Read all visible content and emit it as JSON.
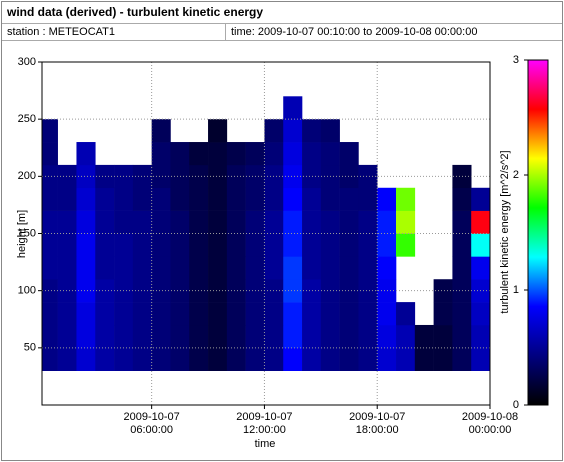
{
  "chart_data": {
    "type": "heatmap",
    "title": "wind data (derived) - turbulent kinetic energy",
    "station": "station : METEOCAT1",
    "time_range": "time: 2009-10-07 00:10:00 to 2009-10-08 00:00:00",
    "xlabel": "time",
    "ylabel": "height [m]",
    "colorbar_label": "turbulent kinetic energy [m^2/s^2]",
    "xlim": [
      0.1667,
      24
    ],
    "xticks": [
      {
        "value": 6,
        "label": "2009-10-07 06:00:00"
      },
      {
        "value": 12,
        "label": "2009-10-07 12:00:00"
      },
      {
        "value": 18,
        "label": "2009-10-07 18:00:00"
      },
      {
        "value": 24,
        "label": "2009-10-08 00:00:00"
      }
    ],
    "ylim": [
      0,
      300
    ],
    "yticks": [
      50,
      100,
      150,
      200,
      250,
      300
    ],
    "clim": [
      0,
      3
    ],
    "cticks": [
      0,
      1,
      2,
      3
    ],
    "colormap": [
      "#000000",
      "#000080",
      "#0000ff",
      "#00ffff",
      "#00ff00",
      "#ffff00",
      "#ff0000",
      "#ff00ff"
    ],
    "grid": true,
    "xbins": [
      0.1667,
      1,
      2,
      3,
      4,
      5,
      6,
      7,
      8,
      9,
      10,
      11,
      12,
      13,
      14,
      15,
      16,
      17,
      18,
      19,
      20,
      21,
      22,
      23,
      24
    ],
    "ybins": [
      30,
      50,
      70,
      90,
      110,
      130,
      150,
      170,
      190,
      210,
      230,
      250,
      270
    ],
    "z": [
      [
        0.45,
        0.5,
        0.7,
        0.55,
        0.5,
        0.45,
        0.4,
        0.35,
        0.25,
        0.2,
        0.3,
        0.4,
        0.45,
        0.85,
        0.55,
        0.45,
        0.4,
        0.45,
        0.7,
        0.6,
        0.2,
        0.2,
        0.3,
        0.6
      ],
      [
        0.45,
        0.5,
        0.75,
        0.55,
        0.5,
        0.45,
        0.4,
        0.35,
        0.25,
        0.2,
        0.3,
        0.4,
        0.45,
        0.9,
        0.55,
        0.45,
        0.4,
        0.45,
        0.75,
        0.6,
        0.2,
        0.2,
        0.3,
        0.6
      ],
      [
        0.45,
        0.5,
        0.75,
        0.55,
        0.5,
        0.45,
        0.4,
        0.35,
        0.25,
        0.2,
        0.3,
        0.4,
        0.45,
        0.9,
        0.55,
        0.45,
        0.4,
        0.45,
        0.8,
        0.5,
        null,
        0.25,
        0.3,
        0.65
      ],
      [
        0.45,
        0.5,
        0.8,
        0.55,
        0.5,
        0.45,
        0.4,
        0.35,
        0.25,
        0.2,
        0.3,
        0.4,
        0.45,
        0.95,
        0.55,
        0.45,
        0.4,
        0.45,
        0.8,
        null,
        null,
        0.25,
        0.3,
        0.7
      ],
      [
        0.5,
        0.5,
        0.8,
        0.5,
        0.5,
        0.45,
        0.4,
        0.35,
        0.25,
        0.2,
        0.3,
        0.4,
        0.5,
        0.95,
        0.5,
        0.45,
        0.4,
        0.45,
        0.85,
        null,
        null,
        null,
        0.3,
        0.8
      ],
      [
        0.5,
        0.5,
        0.8,
        0.5,
        0.5,
        0.45,
        0.4,
        0.35,
        0.25,
        0.2,
        0.3,
        0.4,
        0.5,
        0.9,
        0.5,
        0.45,
        0.4,
        0.45,
        0.9,
        1.8,
        null,
        null,
        0.3,
        1.3
      ],
      [
        0.5,
        0.5,
        0.75,
        0.5,
        0.45,
        0.45,
        0.4,
        0.35,
        0.25,
        0.2,
        0.3,
        0.4,
        0.5,
        0.9,
        0.5,
        0.45,
        0.4,
        0.45,
        0.9,
        2.0,
        null,
        null,
        0.3,
        2.6
      ],
      [
        0.45,
        0.45,
        0.7,
        0.5,
        0.45,
        0.4,
        0.4,
        0.3,
        0.25,
        0.2,
        0.3,
        0.35,
        0.45,
        0.85,
        0.5,
        0.4,
        0.4,
        0.4,
        0.85,
        1.9,
        null,
        null,
        0.25,
        0.5
      ],
      [
        0.45,
        0.45,
        0.65,
        0.45,
        0.45,
        0.4,
        0.35,
        0.3,
        0.25,
        0.2,
        0.3,
        0.35,
        0.45,
        0.8,
        0.45,
        0.4,
        0.35,
        0.4,
        null,
        null,
        null,
        null,
        0.2,
        null
      ],
      [
        0.4,
        null,
        0.6,
        null,
        null,
        null,
        0.35,
        0.3,
        0.2,
        0.2,
        0.25,
        0.3,
        0.4,
        0.75,
        0.45,
        0.4,
        0.35,
        null,
        null,
        null,
        null,
        null,
        null,
        null
      ],
      [
        0.4,
        null,
        null,
        null,
        null,
        null,
        0.3,
        null,
        null,
        0.15,
        null,
        null,
        0.35,
        0.7,
        0.4,
        0.35,
        null,
        null,
        null,
        null,
        null,
        null,
        null,
        null
      ],
      [
        null,
        null,
        null,
        null,
        null,
        null,
        null,
        null,
        null,
        null,
        null,
        null,
        null,
        0.6,
        null,
        null,
        null,
        null,
        null,
        null,
        null,
        null,
        null,
        null
      ]
    ]
  }
}
